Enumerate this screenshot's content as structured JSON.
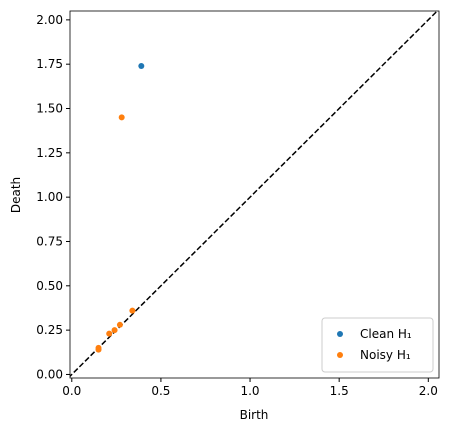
{
  "chart_data": {
    "type": "scatter",
    "x_label": "Birth",
    "y_label": "Death",
    "xlim": [
      -0.01,
      2.06
    ],
    "ylim": [
      -0.02,
      2.05
    ],
    "xticks": [
      {
        "value": 0,
        "label": "0.0"
      },
      {
        "value": 0.5,
        "label": "0.5"
      },
      {
        "value": 1,
        "label": "1.0"
      },
      {
        "value": 1.5,
        "label": "1.5"
      },
      {
        "value": 2,
        "label": "2.0"
      }
    ],
    "yticks": [
      {
        "value": 0,
        "label": "0.00"
      },
      {
        "value": 0.25,
        "label": "0.25"
      },
      {
        "value": 0.5,
        "label": "0.50"
      },
      {
        "value": 0.75,
        "label": "0.75"
      },
      {
        "value": 1,
        "label": "1.00"
      },
      {
        "value": 1.25,
        "label": "1.25"
      },
      {
        "value": 1.5,
        "label": "1.50"
      },
      {
        "value": 1.75,
        "label": "1.75"
      },
      {
        "value": 2,
        "label": "2.00"
      }
    ],
    "legend": "lower right",
    "series": [
      {
        "name": "Clean H₁",
        "color": "#1f77b4",
        "x": [
          0.39
        ],
        "values": [
          1.74
        ]
      },
      {
        "name": "Noisy H₁",
        "color": "#ff7f0e",
        "x": [
          0.28,
          0.34,
          0.27,
          0.24,
          0.21,
          0.15,
          0.15
        ],
        "values": [
          1.45,
          0.36,
          0.28,
          0.25,
          0.23,
          0.15,
          0.14
        ]
      }
    ]
  }
}
